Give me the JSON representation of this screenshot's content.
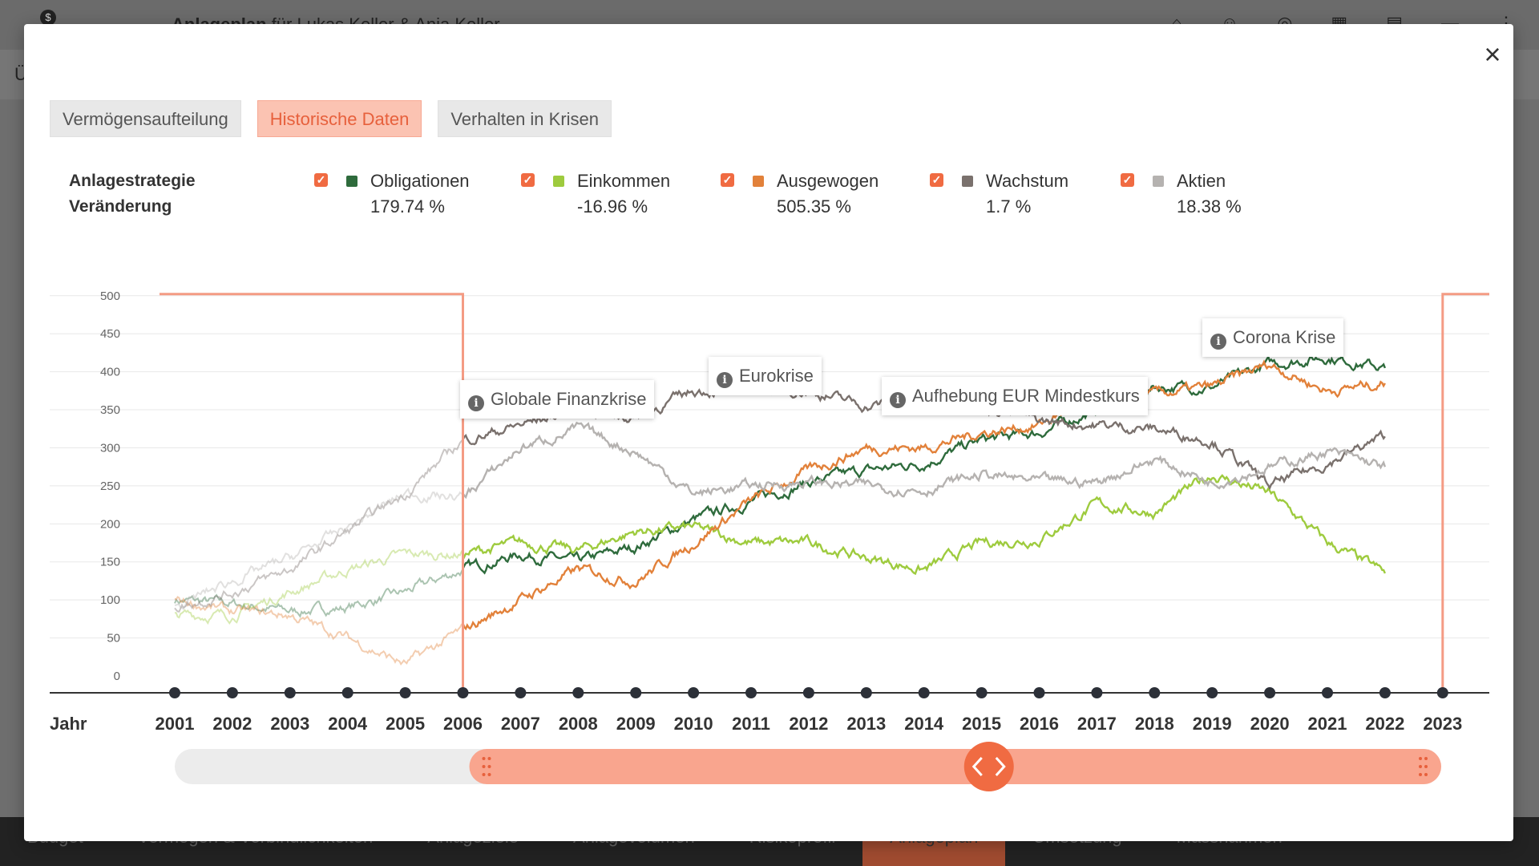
{
  "background": {
    "app_title_bold": "Anlageplan",
    "app_title_rest": " für Lukas Keller & Anja Keller",
    "sub_label": "Ü",
    "nav": [
      {
        "label": "Budget",
        "active": false
      },
      {
        "label": "Vermögen & Verbindlichkeiten",
        "active": false
      },
      {
        "label": "Anlageziele",
        "active": false
      },
      {
        "label": "Anlagevolumen",
        "active": false
      },
      {
        "label": "Risikoprofil",
        "active": false
      },
      {
        "label": "Anlageplan",
        "active": true
      },
      {
        "label": "Umsetzung",
        "active": false
      },
      {
        "label": "Massnahmen",
        "active": false
      }
    ]
  },
  "modal": {
    "close_icon": "×",
    "tabs": [
      {
        "label": "Vermögensaufteilung",
        "active": false
      },
      {
        "label": "Historische Daten",
        "active": true
      },
      {
        "label": "Verhalten in Krisen",
        "active": false
      }
    ],
    "legend_label_line1": "Anlagestrategie",
    "legend_label_line2": "Veränderung",
    "checkbox_mark": "✓"
  },
  "colors": {
    "accent": "#f06b42",
    "Obligationen": "#2e6b3c",
    "Einkommen": "#9ecb3e",
    "Ausgewogen": "#e2813a",
    "Wachstum": "#7a716d",
    "Aktien": "#b5b2b0"
  },
  "chart_data": {
    "type": "line",
    "x_axis_label": "Jahr",
    "x_ticks": [
      "2001",
      "2002",
      "2003",
      "2004",
      "2005",
      "2006",
      "2007",
      "2008",
      "2009",
      "2010",
      "2011",
      "2012",
      "2013",
      "2014",
      "2015",
      "2016",
      "2017",
      "2018",
      "2019",
      "2020",
      "2021",
      "2022",
      "2023"
    ],
    "ylim": [
      0,
      500
    ],
    "y_ticks": [
      0,
      50,
      100,
      150,
      200,
      250,
      300,
      350,
      400,
      450,
      500
    ],
    "grid": true,
    "selected_range": [
      2006,
      2023
    ],
    "series": [
      {
        "name": "Obligationen",
        "change": "179.74 %",
        "color": "#2e6b3c",
        "x": [
          2001,
          2002,
          2003,
          2004,
          2005,
          2006,
          2007,
          2008,
          2009,
          2010,
          2011,
          2012,
          2013,
          2014,
          2015,
          2016,
          2017,
          2018,
          2019,
          2020,
          2021,
          2022
        ],
        "y": [
          100,
          95,
          85,
          90,
          110,
          140,
          160,
          150,
          170,
          205,
          230,
          255,
          270,
          280,
          310,
          320,
          350,
          380,
          380,
          410,
          420,
          405
        ]
      },
      {
        "name": "Einkommen",
        "change": "-16.96 %",
        "color": "#9ecb3e",
        "x": [
          2001,
          2002,
          2003,
          2004,
          2005,
          2006,
          2007,
          2008,
          2009,
          2010,
          2011,
          2012,
          2013,
          2014,
          2015,
          2016,
          2017,
          2018,
          2019,
          2020,
          2021,
          2022
        ],
        "y": [
          80,
          80,
          110,
          140,
          160,
          160,
          175,
          165,
          190,
          195,
          175,
          175,
          155,
          140,
          175,
          180,
          225,
          215,
          265,
          240,
          175,
          135
        ]
      },
      {
        "name": "Ausgewogen",
        "change": "505.35 %",
        "color": "#e2813a",
        "x": [
          2001,
          2002,
          2003,
          2004,
          2005,
          2006,
          2007,
          2008,
          2009,
          2010,
          2011,
          2012,
          2013,
          2014,
          2015,
          2016,
          2017,
          2018,
          2019,
          2020,
          2021,
          2022
        ],
        "y": [
          100,
          85,
          80,
          50,
          15,
          60,
          100,
          140,
          125,
          175,
          230,
          270,
          300,
          300,
          320,
          330,
          370,
          370,
          380,
          410,
          375,
          385
        ]
      },
      {
        "name": "Wachstum",
        "change": "1.7 %",
        "color": "#7a716d",
        "x": [
          2001,
          2002,
          2003,
          2004,
          2005,
          2006,
          2007,
          2008,
          2009,
          2010,
          2011,
          2012,
          2013,
          2014,
          2015,
          2016,
          2017,
          2018,
          2019,
          2020,
          2021,
          2022
        ],
        "y": [
          90,
          110,
          140,
          190,
          240,
          310,
          330,
          350,
          340,
          375,
          380,
          375,
          355,
          365,
          355,
          335,
          330,
          325,
          310,
          250,
          280,
          315
        ]
      },
      {
        "name": "Aktien",
        "change": "18.38 %",
        "color": "#b5b2b0",
        "x": [
          2001,
          2002,
          2003,
          2004,
          2005,
          2006,
          2007,
          2008,
          2009,
          2010,
          2011,
          2012,
          2013,
          2014,
          2015,
          2016,
          2017,
          2018,
          2019,
          2020,
          2021,
          2022
        ],
        "y": [
          90,
          125,
          155,
          195,
          240,
          235,
          300,
          325,
          295,
          240,
          250,
          255,
          250,
          245,
          265,
          255,
          255,
          285,
          255,
          275,
          295,
          275
        ]
      }
    ],
    "annotations": [
      {
        "label": "Globale Finanzkrise"
      },
      {
        "label": "Eurokrise"
      },
      {
        "label": "Aufhebung EUR Mindestkurs"
      },
      {
        "label": "Corona Krise"
      }
    ]
  }
}
